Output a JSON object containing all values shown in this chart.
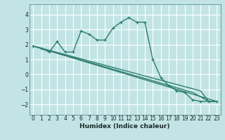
{
  "bg_color": "#c2e4e4",
  "grid_color": "#ffffff",
  "line_color": "#2e7d6e",
  "xlabel": "Humidex (Indice chaleur)",
  "xlim": [
    -0.5,
    23.5
  ],
  "ylim": [
    -2.7,
    4.7
  ],
  "yticks": [
    -2,
    -1,
    0,
    1,
    2,
    3,
    4
  ],
  "xticks": [
    0,
    1,
    2,
    3,
    4,
    5,
    6,
    7,
    8,
    9,
    10,
    11,
    12,
    13,
    14,
    15,
    16,
    17,
    18,
    19,
    20,
    21,
    22,
    23
  ],
  "series": [
    {
      "x": [
        0,
        1,
        2,
        3,
        4,
        5,
        6,
        7,
        8,
        9,
        10,
        11,
        12,
        13,
        14,
        15,
        16,
        17,
        18,
        19,
        20,
        21,
        22,
        23
      ],
      "y": [
        1.9,
        1.75,
        1.5,
        2.2,
        1.5,
        1.5,
        2.9,
        2.7,
        2.3,
        2.3,
        3.1,
        3.5,
        3.8,
        3.5,
        3.5,
        1.0,
        -0.2,
        -0.75,
        -1.1,
        -1.2,
        -1.7,
        -1.8,
        -1.8,
        -1.8
      ],
      "marker": "+"
    },
    {
      "x": [
        0,
        23
      ],
      "y": [
        1.9,
        -1.8
      ],
      "marker": null
    },
    {
      "x": [
        0,
        21,
        22,
        23
      ],
      "y": [
        1.9,
        -1.1,
        -1.8,
        -1.8
      ],
      "marker": null
    },
    {
      "x": [
        0,
        20,
        21,
        22,
        23
      ],
      "y": [
        1.9,
        -1.2,
        -1.5,
        -1.8,
        -1.8
      ],
      "marker": null
    }
  ]
}
